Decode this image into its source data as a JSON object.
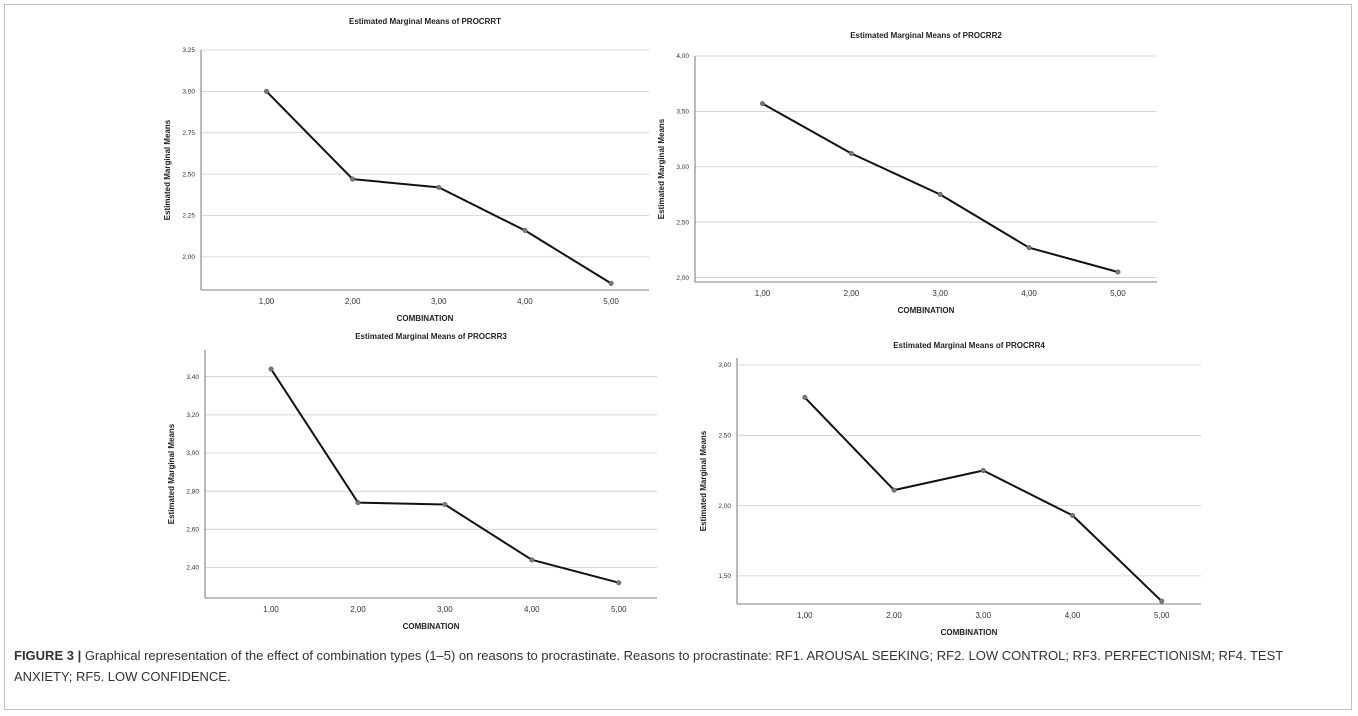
{
  "caption": {
    "figure_label": "FIGURE 3 |",
    "text": " Graphical representation of the effect of combination types (1–5) on reasons to procrastinate. Reasons to procrastinate: RF1. AROUSAL SEEKING; RF2. LOW CONTROL; RF3. PERFECTIONISM; RF4. TEST ANXIETY; RF5. LOW CONFIDENCE."
  },
  "colors": {
    "line": "#111111",
    "marker": "#777777",
    "grid": "#cccccc",
    "axis": "#555555"
  },
  "chart_data": [
    {
      "type": "line",
      "title": "Estimated Marginal Means of PROCRRT",
      "xlabel": "COMBINATION",
      "ylabel": "Estimated Marginal Means",
      "categories": [
        "1,00",
        "2,00",
        "3,00",
        "4,00",
        "5,00"
      ],
      "values": [
        3.0,
        2.47,
        2.42,
        2.16,
        1.84
      ],
      "ylim": [
        1.8,
        3.25
      ],
      "yticks": [
        2.0,
        2.25,
        2.5,
        2.75,
        3.0,
        3.25
      ],
      "ytick_labels": [
        "2,00",
        "2,25",
        "2,50",
        "2,75",
        "3,00",
        "3,25"
      ],
      "grid": true
    },
    {
      "type": "line",
      "title": "Estimated Marginal Means of PROCRR2",
      "xlabel": "COMBINATION",
      "ylabel": "Estimated Marginal Means",
      "categories": [
        "1,00",
        "2,00",
        "3,00",
        "4,00",
        "5,00"
      ],
      "values": [
        3.57,
        3.12,
        2.75,
        2.27,
        2.05
      ],
      "ylim": [
        1.96,
        4.0
      ],
      "yticks": [
        2.0,
        2.5,
        3.0,
        3.5,
        4.0
      ],
      "ytick_labels": [
        "2,00",
        "2,50",
        "3,00",
        "3,50",
        "4,00"
      ],
      "grid": true
    },
    {
      "type": "line",
      "title": "Estimated Marginal Means of PROCRR3",
      "xlabel": "COMBINATION",
      "ylabel": "Estimated Marginal Means",
      "categories": [
        "1,00",
        "2,00",
        "3,00",
        "4,00",
        "5,00"
      ],
      "values": [
        3.44,
        2.74,
        2.73,
        2.44,
        2.32
      ],
      "ylim": [
        2.24,
        3.54
      ],
      "yticks": [
        2.4,
        2.6,
        2.8,
        3.0,
        3.2,
        3.4
      ],
      "ytick_labels": [
        "2,40",
        "2,60",
        "2,80",
        "3,00",
        "3,20",
        "3,40"
      ],
      "grid": true
    },
    {
      "type": "line",
      "title": "Estimated Marginal Means of PROCRR4",
      "xlabel": "COMBINATION",
      "ylabel": "Estimated Marginal Means",
      "categories": [
        "1,00",
        "2,00",
        "3,00",
        "4,00",
        "5,00"
      ],
      "values": [
        2.77,
        2.11,
        2.25,
        1.93,
        1.32
      ],
      "ylim": [
        1.3,
        3.05
      ],
      "yticks": [
        1.5,
        2.0,
        2.5,
        3.0
      ],
      "ytick_labels": [
        "1,50",
        "2,00",
        "2,50",
        "3,00"
      ],
      "grid": true
    }
  ]
}
